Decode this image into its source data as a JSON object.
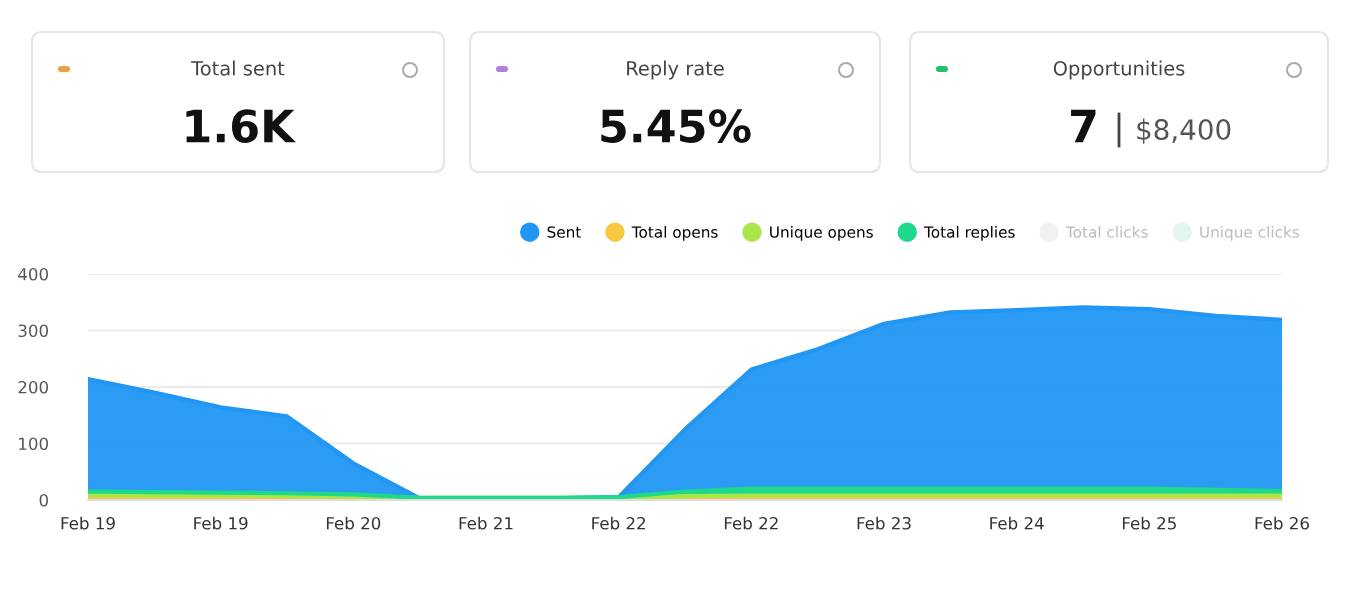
{
  "chart_data": [
    {
      "type": "other",
      "annotations": [
        "Total sent",
        "1.6K",
        "Reply rate",
        "5.45%",
        "Opportunities",
        "7",
        "$8,400"
      ],
      "colors": [
        "#f0a04b",
        "#b07fd9",
        "#22c16b"
      ]
    },
    {
      "type": "area",
      "categories": [
        "Feb 19",
        null,
        "Feb 19",
        null,
        "Feb 20",
        null,
        "Feb 21",
        null,
        "Feb 22",
        null,
        "Feb 22",
        null,
        "Feb 23",
        null,
        "Feb 24",
        null,
        "Feb 25",
        null,
        "Feb 26"
      ],
      "series": [
        {
          "name": "Sent",
          "color": "#2196f3",
          "values": [
            214,
            190,
            164,
            148,
            65,
            3,
            3,
            3,
            5,
            125,
            231,
            267,
            312,
            332,
            336,
            341,
            338,
            326,
            319
          ]
        },
        {
          "name": "Total opens",
          "color": "#f9c740",
          "values": [
            4,
            4,
            4,
            4,
            4,
            3,
            3,
            3,
            3,
            4,
            4,
            4,
            4,
            4,
            4,
            4,
            4,
            4,
            4
          ]
        },
        {
          "name": "Unique opens",
          "color": "#a8e64a",
          "values": [
            8,
            8,
            8,
            7,
            6,
            4,
            4,
            4,
            4,
            7,
            8,
            8,
            8,
            8,
            8,
            8,
            8,
            8,
            8
          ]
        },
        {
          "name": "Total replies",
          "color": "#1ed98a",
          "values": [
            15,
            14,
            13,
            12,
            10,
            4,
            4,
            4,
            5,
            15,
            20,
            20,
            20,
            20,
            20,
            20,
            20,
            18,
            16
          ]
        },
        {
          "name": "Total clicks",
          "color": "#eef3f1",
          "values": [
            null,
            null,
            null,
            null,
            null,
            null,
            null,
            null,
            null,
            null,
            null,
            null,
            null,
            null,
            null,
            null,
            null,
            null,
            null
          ]
        },
        {
          "name": "Unique clicks",
          "color": "#e3f4f1",
          "values": [
            null,
            null,
            null,
            null,
            null,
            null,
            null,
            null,
            null,
            null,
            null,
            null,
            null,
            null,
            null,
            null,
            null,
            null,
            null
          ]
        }
      ],
      "ylim": [
        0,
        400
      ],
      "yticks": [
        0,
        100,
        200,
        300,
        400
      ],
      "grid": "y",
      "legend": "top right"
    }
  ]
}
